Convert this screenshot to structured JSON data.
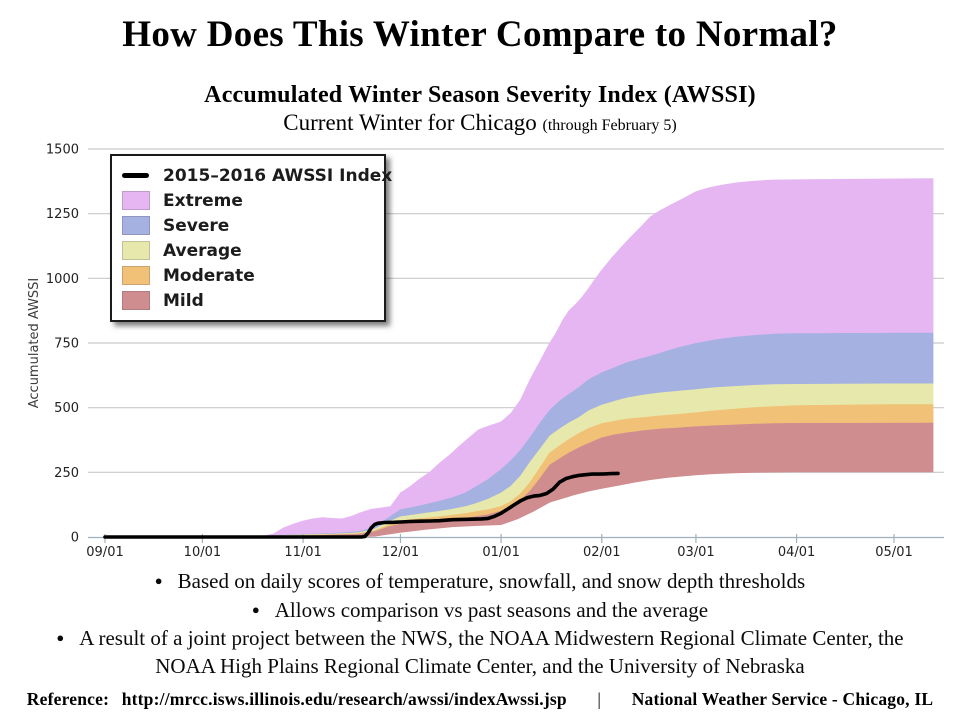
{
  "header": {
    "title": "How Does This Winter Compare to Normal?",
    "subtitle": "Accumulated Winter Season Severity Index (AWSSI)",
    "subtitle2": "Current Winter for Chicago",
    "subtitle2_note": "(through February 5)"
  },
  "legend": {
    "items": [
      {
        "label": "2015–2016 AWSSI Index",
        "type": "line",
        "color": "#000000"
      },
      {
        "label": "Extreme",
        "type": "swatch",
        "color": "#e5b6f2"
      },
      {
        "label": "Severe",
        "type": "swatch",
        "color": "#a5b1e1"
      },
      {
        "label": "Average",
        "type": "swatch",
        "color": "#e7e8ab"
      },
      {
        "label": "Moderate",
        "type": "swatch",
        "color": "#f0c176"
      },
      {
        "label": "Mild",
        "type": "swatch",
        "color": "#d08d90"
      }
    ]
  },
  "chart_data": {
    "type": "area",
    "title": "Accumulated Winter Season Severity Index (AWSSI) — Current Winter for Chicago (through February 5)",
    "xlabel": "",
    "ylabel": "Accumulated AWSSI",
    "ylim": [
      0,
      1500
    ],
    "yticks": [
      0,
      250,
      500,
      750,
      1000,
      1250,
      1500
    ],
    "grid": true,
    "legend_position": "upper-left",
    "xticks": [
      {
        "label": "09/01",
        "day": 0
      },
      {
        "label": "10/01",
        "day": 30
      },
      {
        "label": "11/01",
        "day": 61
      },
      {
        "label": "12/01",
        "day": 91
      },
      {
        "label": "01/01",
        "day": 122
      },
      {
        "label": "02/01",
        "day": 153
      },
      {
        "label": "03/01",
        "day": 182
      },
      {
        "label": "04/01",
        "day": 213
      },
      {
        "label": "05/01",
        "day": 243
      }
    ],
    "x_end_day": 255,
    "colors": {
      "grid": "#c9c9c9",
      "axis": "#9fb0bf",
      "tick_text": "#222222"
    },
    "boundaries": {
      "min": [
        [
          0,
          0
        ],
        [
          75,
          0
        ],
        [
          83,
          3
        ],
        [
          91,
          18
        ],
        [
          99,
          30
        ],
        [
          107,
          40
        ],
        [
          114,
          44
        ],
        [
          122,
          48
        ],
        [
          127,
          70
        ],
        [
          132,
          100
        ],
        [
          137,
          135
        ],
        [
          141,
          150
        ],
        [
          145,
          165
        ],
        [
          149,
          178
        ],
        [
          153,
          188
        ],
        [
          158,
          200
        ],
        [
          163,
          212
        ],
        [
          168,
          222
        ],
        [
          173,
          230
        ],
        [
          178,
          236
        ],
        [
          182,
          240
        ],
        [
          188,
          245
        ],
        [
          194,
          248
        ],
        [
          200,
          250
        ],
        [
          206,
          251
        ],
        [
          213,
          252
        ],
        [
          255,
          252
        ]
      ],
      "mild_top": [
        [
          0,
          0
        ],
        [
          50,
          1
        ],
        [
          61,
          4
        ],
        [
          70,
          7
        ],
        [
          78,
          10
        ],
        [
          83,
          20
        ],
        [
          87,
          38
        ],
        [
          91,
          50
        ],
        [
          95,
          55
        ],
        [
          99,
          58
        ],
        [
          103,
          62
        ],
        [
          107,
          66
        ],
        [
          111,
          72
        ],
        [
          114,
          78
        ],
        [
          118,
          86
        ],
        [
          122,
          100
        ],
        [
          125,
          115
        ],
        [
          128,
          142
        ],
        [
          131,
          178
        ],
        [
          134,
          226
        ],
        [
          137,
          278
        ],
        [
          140,
          302
        ],
        [
          143,
          325
        ],
        [
          146,
          345
        ],
        [
          149,
          362
        ],
        [
          153,
          383
        ],
        [
          157,
          395
        ],
        [
          161,
          403
        ],
        [
          166,
          411
        ],
        [
          171,
          417
        ],
        [
          176,
          421
        ],
        [
          182,
          426
        ],
        [
          188,
          430
        ],
        [
          194,
          433
        ],
        [
          200,
          436
        ],
        [
          206,
          438
        ],
        [
          213,
          439
        ],
        [
          255,
          440
        ]
      ],
      "moderate_top": [
        [
          0,
          0
        ],
        [
          50,
          2
        ],
        [
          61,
          6
        ],
        [
          70,
          9
        ],
        [
          78,
          13
        ],
        [
          83,
          24
        ],
        [
          87,
          45
        ],
        [
          91,
          62
        ],
        [
          95,
          68
        ],
        [
          99,
          73
        ],
        [
          103,
          78
        ],
        [
          107,
          84
        ],
        [
          111,
          90
        ],
        [
          114,
          97
        ],
        [
          118,
          105
        ],
        [
          122,
          118
        ],
        [
          125,
          137
        ],
        [
          128,
          167
        ],
        [
          131,
          212
        ],
        [
          134,
          268
        ],
        [
          137,
          325
        ],
        [
          140,
          352
        ],
        [
          143,
          378
        ],
        [
          146,
          400
        ],
        [
          149,
          420
        ],
        [
          153,
          438
        ],
        [
          157,
          448
        ],
        [
          161,
          456
        ],
        [
          166,
          462
        ],
        [
          171,
          468
        ],
        [
          176,
          473
        ],
        [
          182,
          480
        ],
        [
          188,
          488
        ],
        [
          194,
          494
        ],
        [
          200,
          500
        ],
        [
          206,
          504
        ],
        [
          213,
          508
        ],
        [
          243,
          512
        ],
        [
          255,
          512
        ]
      ],
      "average_top": [
        [
          0,
          0
        ],
        [
          50,
          3
        ],
        [
          61,
          8
        ],
        [
          70,
          11
        ],
        [
          78,
          16
        ],
        [
          83,
          30
        ],
        [
          87,
          56
        ],
        [
          91,
          78
        ],
        [
          95,
          85
        ],
        [
          99,
          92
        ],
        [
          103,
          99
        ],
        [
          107,
          107
        ],
        [
          111,
          117
        ],
        [
          114,
          128
        ],
        [
          118,
          146
        ],
        [
          122,
          170
        ],
        [
          125,
          196
        ],
        [
          128,
          236
        ],
        [
          131,
          290
        ],
        [
          134,
          340
        ],
        [
          137,
          390
        ],
        [
          140,
          418
        ],
        [
          143,
          442
        ],
        [
          146,
          462
        ],
        [
          149,
          488
        ],
        [
          153,
          510
        ],
        [
          157,
          525
        ],
        [
          161,
          538
        ],
        [
          166,
          549
        ],
        [
          171,
          557
        ],
        [
          176,
          563
        ],
        [
          182,
          570
        ],
        [
          188,
          577
        ],
        [
          194,
          582
        ],
        [
          200,
          586
        ],
        [
          206,
          589
        ],
        [
          213,
          590
        ],
        [
          243,
          592
        ],
        [
          255,
          592
        ]
      ],
      "severe_top": [
        [
          0,
          0
        ],
        [
          50,
          4
        ],
        [
          61,
          10
        ],
        [
          70,
          14
        ],
        [
          78,
          20
        ],
        [
          83,
          38
        ],
        [
          87,
          72
        ],
        [
          91,
          105
        ],
        [
          95,
          115
        ],
        [
          99,
          126
        ],
        [
          103,
          138
        ],
        [
          107,
          152
        ],
        [
          111,
          170
        ],
        [
          114,
          192
        ],
        [
          118,
          222
        ],
        [
          122,
          260
        ],
        [
          125,
          295
        ],
        [
          128,
          335
        ],
        [
          131,
          385
        ],
        [
          134,
          440
        ],
        [
          137,
          490
        ],
        [
          140,
          525
        ],
        [
          143,
          552
        ],
        [
          146,
          578
        ],
        [
          149,
          608
        ],
        [
          153,
          635
        ],
        [
          157,
          655
        ],
        [
          161,
          675
        ],
        [
          166,
          692
        ],
        [
          171,
          710
        ],
        [
          176,
          730
        ],
        [
          182,
          748
        ],
        [
          188,
          762
        ],
        [
          194,
          772
        ],
        [
          200,
          779
        ],
        [
          206,
          784
        ],
        [
          213,
          786
        ],
        [
          243,
          788
        ],
        [
          255,
          788
        ]
      ],
      "extreme_top": [
        [
          0,
          0
        ],
        [
          30,
          0
        ],
        [
          45,
          1
        ],
        [
          49,
          3
        ],
        [
          52,
          12
        ],
        [
          55,
          35
        ],
        [
          58,
          50
        ],
        [
          61,
          62
        ],
        [
          64,
          70
        ],
        [
          67,
          75
        ],
        [
          70,
          72
        ],
        [
          73,
          70
        ],
        [
          76,
          80
        ],
        [
          79,
          95
        ],
        [
          82,
          107
        ],
        [
          85,
          112
        ],
        [
          88,
          118
        ],
        [
          91,
          170
        ],
        [
          94,
          195
        ],
        [
          97,
          225
        ],
        [
          100,
          250
        ],
        [
          103,
          285
        ],
        [
          106,
          315
        ],
        [
          109,
          350
        ],
        [
          112,
          382
        ],
        [
          115,
          414
        ],
        [
          118,
          428
        ],
        [
          122,
          445
        ],
        [
          125,
          478
        ],
        [
          128,
          530
        ],
        [
          131,
          610
        ],
        [
          134,
          680
        ],
        [
          137,
          750
        ],
        [
          139,
          790
        ],
        [
          141,
          838
        ],
        [
          143,
          876
        ],
        [
          145,
          900
        ],
        [
          147,
          928
        ],
        [
          149,
          962
        ],
        [
          151,
          998
        ],
        [
          153,
          1032
        ],
        [
          156,
          1078
        ],
        [
          159,
          1120
        ],
        [
          162,
          1160
        ],
        [
          165,
          1198
        ],
        [
          168,
          1238
        ],
        [
          171,
          1262
        ],
        [
          174,
          1282
        ],
        [
          178,
          1308
        ],
        [
          182,
          1335
        ],
        [
          186,
          1350
        ],
        [
          190,
          1360
        ],
        [
          195,
          1370
        ],
        [
          200,
          1376
        ],
        [
          206,
          1380
        ],
        [
          213,
          1381
        ],
        [
          230,
          1383
        ],
        [
          255,
          1385
        ]
      ]
    },
    "bands": [
      {
        "name": "Extreme",
        "color": "#e5b6f2",
        "upper": "extreme_top",
        "lower": "severe_top"
      },
      {
        "name": "Severe",
        "color": "#a5b1e1",
        "upper": "severe_top",
        "lower": "average_top"
      },
      {
        "name": "Average",
        "color": "#e7e8ab",
        "upper": "average_top",
        "lower": "moderate_top"
      },
      {
        "name": "Moderate",
        "color": "#f0c176",
        "upper": "moderate_top",
        "lower": "mild_top"
      },
      {
        "name": "Mild",
        "color": "#d08d90",
        "upper": "mild_top",
        "lower": "min"
      }
    ],
    "series": [
      {
        "name": "2015–2016 AWSSI Index",
        "color": "#000000",
        "width": 3.6,
        "points": [
          [
            0,
            0
          ],
          [
            79,
            0
          ],
          [
            80,
            2
          ],
          [
            81,
            15
          ],
          [
            82,
            35
          ],
          [
            83,
            48
          ],
          [
            84,
            53
          ],
          [
            86,
            56
          ],
          [
            89,
            57
          ],
          [
            91,
            58
          ],
          [
            94,
            60
          ],
          [
            97,
            61
          ],
          [
            100,
            62
          ],
          [
            103,
            63
          ],
          [
            105,
            65
          ],
          [
            107,
            67
          ],
          [
            110,
            68
          ],
          [
            113,
            69
          ],
          [
            116,
            70
          ],
          [
            118,
            72
          ],
          [
            120,
            80
          ],
          [
            122,
            92
          ],
          [
            124,
            108
          ],
          [
            126,
            124
          ],
          [
            128,
            140
          ],
          [
            130,
            152
          ],
          [
            132,
            158
          ],
          [
            134,
            161
          ],
          [
            136,
            168
          ],
          [
            138,
            185
          ],
          [
            140,
            212
          ],
          [
            142,
            226
          ],
          [
            144,
            233
          ],
          [
            146,
            238
          ],
          [
            148,
            241
          ],
          [
            150,
            243
          ],
          [
            152,
            243
          ],
          [
            154,
            244
          ],
          [
            156,
            245
          ],
          [
            158,
            246
          ]
        ]
      }
    ]
  },
  "bullets": [
    "Based on daily scores of temperature, snowfall, and snow depth thresholds",
    "Allows comparison vs past seasons and the average",
    "A result of a joint project between the NWS, the NOAA Midwestern Regional Climate Center, the NOAA High Plains Regional Climate Center, and the University of Nebraska"
  ],
  "footer": {
    "reference_label": "Reference:",
    "reference_url": "http://mrcc.isws.illinois.edu/research/awssi/indexAwssi.jsp",
    "separator": "|",
    "attribution": "National Weather Service - Chicago, IL"
  }
}
